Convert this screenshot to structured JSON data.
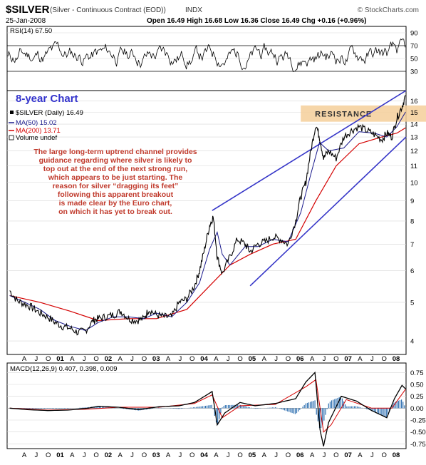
{
  "header": {
    "symbol": "$SILVER",
    "description": "(Silver - Continuous Contract (EOD))",
    "exchange": "INDX",
    "watermark": "© StockCharts.com",
    "date": "25-Jan-2008",
    "ohlc": "Open 16.49  High 16.68  Low 16.36  Close 16.49  Chg +0.16 (+0.96%)"
  },
  "annotations": {
    "chart_label": "8-year Chart",
    "resistance_label": "RESISTANCE",
    "commentary": [
      "The large long-term uptrend channel provides",
      "guidance regarding where silver is likely to",
      "top out at the end of the next strong run,",
      "which appears to be just starting. The",
      "reason for silver “dragging its feet”",
      "following this apparent breakout",
      "is made clear by the Euro chart,",
      "on which it has yet to break out."
    ]
  },
  "colors": {
    "price": "#000000",
    "ma50": "#1a1a8c",
    "ma200": "#d40000",
    "channel": "#3636c8",
    "resistance_band": "#f5cf9a",
    "commentary": "#c0392b",
    "macd_hist": "#2e6fb0",
    "grid": "#d8d8d8"
  },
  "chart_data": [
    {
      "type": "line",
      "name": "rsi-panel",
      "legend": "RSI(14) 67.50",
      "ylim": [
        0,
        100
      ],
      "y_ticks": [
        30,
        50,
        70,
        90
      ],
      "guide_levels": [
        30,
        70
      ],
      "last_value": 67.5
    },
    {
      "type": "line",
      "name": "price-panel",
      "scale": "log",
      "ylim": [
        3.7,
        17
      ],
      "y_ticks": [
        4,
        5,
        6,
        7,
        8,
        9,
        10,
        11,
        12,
        13,
        14,
        15,
        16
      ],
      "legend": [
        {
          "label": "$SILVER (Daily) 16.49",
          "color": "#000000"
        },
        {
          "label": "MA(50) 15.02",
          "color": "#1a1a8c"
        },
        {
          "label": "MA(200) 13.71",
          "color": "#d40000"
        },
        {
          "label": "Volume undef",
          "color": "#000000"
        }
      ],
      "x_ticks": [
        "A",
        "J",
        "O",
        "01",
        "A",
        "J",
        "O",
        "02",
        "A",
        "J",
        "O",
        "03",
        "A",
        "J",
        "O",
        "04",
        "A",
        "J",
        "O",
        "05",
        "A",
        "J",
        "O",
        "06",
        "A",
        "J",
        "O",
        "07",
        "A",
        "J",
        "O",
        "08"
      ],
      "x_range": [
        2000.2,
        2008.08
      ],
      "series": [
        {
          "name": "$SILVER",
          "x": [
            2000.25,
            2000.4,
            2000.55,
            2000.7,
            2000.85,
            2001.0,
            2001.15,
            2001.3,
            2001.45,
            2001.6,
            2001.75,
            2001.9,
            2002.0,
            2002.15,
            2002.3,
            2002.45,
            2002.6,
            2002.75,
            2002.9,
            2003.0,
            2003.15,
            2003.3,
            2003.45,
            2003.6,
            2003.75,
            2003.9,
            2004.0,
            2004.1,
            2004.2,
            2004.27,
            2004.35,
            2004.45,
            2004.6,
            2004.75,
            2004.9,
            2005.0,
            2005.15,
            2005.3,
            2005.45,
            2005.6,
            2005.75,
            2005.9,
            2006.0,
            2006.1,
            2006.2,
            2006.3,
            2006.37,
            2006.45,
            2006.55,
            2006.7,
            2006.85,
            2007.0,
            2007.15,
            2007.3,
            2007.45,
            2007.6,
            2007.7,
            2007.8,
            2007.9,
            2008.0,
            2008.07
          ],
          "y": [
            5.35,
            5.05,
            4.95,
            4.85,
            4.7,
            4.6,
            4.45,
            4.35,
            4.3,
            4.2,
            4.25,
            4.5,
            4.55,
            4.6,
            4.65,
            4.75,
            4.55,
            4.5,
            4.55,
            4.8,
            4.65,
            4.6,
            4.6,
            5.0,
            5.1,
            5.5,
            6.0,
            6.8,
            7.8,
            8.2,
            6.5,
            5.9,
            6.5,
            7.2,
            7.0,
            6.7,
            7.0,
            7.1,
            7.3,
            7.2,
            7.0,
            8.0,
            9.2,
            10.0,
            12.0,
            14.0,
            13.0,
            11.5,
            12.0,
            11.5,
            13.0,
            13.5,
            13.8,
            13.5,
            13.2,
            12.8,
            13.3,
            13.0,
            14.5,
            15.5,
            16.49
          ]
        },
        {
          "name": "MA(50)",
          "x": [
            2000.25,
            2000.55,
            2000.85,
            2001.15,
            2001.45,
            2001.75,
            2002.0,
            2002.3,
            2002.6,
            2002.9,
            2003.15,
            2003.45,
            2003.75,
            2004.0,
            2004.2,
            2004.35,
            2004.45,
            2004.6,
            2004.9,
            2005.15,
            2005.45,
            2005.75,
            2006.0,
            2006.2,
            2006.37,
            2006.55,
            2006.85,
            2007.15,
            2007.45,
            2007.7,
            2007.9,
            2008.07
          ],
          "y": [
            5.2,
            5.0,
            4.8,
            4.5,
            4.35,
            4.25,
            4.45,
            4.6,
            4.6,
            4.55,
            4.7,
            4.6,
            5.0,
            5.6,
            6.8,
            7.5,
            6.6,
            6.2,
            6.9,
            6.9,
            7.2,
            7.1,
            8.4,
            10.5,
            12.6,
            12.0,
            12.2,
            13.4,
            13.3,
            13.0,
            13.8,
            15.02
          ]
        },
        {
          "name": "MA(200)",
          "x": [
            2000.25,
            2000.85,
            2001.45,
            2002.0,
            2002.6,
            2003.15,
            2003.75,
            2004.2,
            2004.6,
            2005.0,
            2005.45,
            2005.9,
            2006.3,
            2006.7,
            2007.15,
            2007.6,
            2007.9,
            2008.07
          ],
          "y": [
            5.2,
            5.0,
            4.75,
            4.5,
            4.55,
            4.55,
            4.8,
            5.5,
            6.2,
            6.6,
            7.0,
            7.2,
            9.0,
            11.0,
            12.5,
            13.0,
            13.3,
            13.71
          ]
        }
      ],
      "channel_upper": {
        "x": [
          2004.25,
          2008.08
        ],
        "y": [
          8.5,
          17.0
        ]
      },
      "channel_lower": {
        "x": [
          2005.0,
          2008.08
        ],
        "y": [
          5.5,
          13.0
        ]
      },
      "resistance": {
        "ylim": [
          14.2,
          15.6
        ],
        "x_start": 2006.0
      }
    },
    {
      "type": "line",
      "name": "macd-panel",
      "legend": "MACD(12,26,9) 0.407, 0.398, 0.009",
      "ylim": [
        -0.85,
        0.95
      ],
      "y_ticks": [
        0.75,
        0.5,
        0.25,
        0.0,
        -0.25,
        -0.5,
        -0.75
      ],
      "y_tick_labels": [
        "0.75",
        "0.50",
        "0.25",
        "0.00",
        "-0.25",
        "-0.50",
        "-0.75"
      ],
      "x_ticks": [
        "A",
        "J",
        "O",
        "01",
        "A",
        "J",
        "O",
        "02",
        "A",
        "J",
        "O",
        "03",
        "A",
        "J",
        "O",
        "04",
        "A",
        "J",
        "O",
        "05",
        "A",
        "J",
        "O",
        "06",
        "A",
        "J",
        "O",
        "07",
        "A",
        "J",
        "O",
        "08"
      ],
      "series": [
        {
          "name": "MACD",
          "x": [
            2000.25,
            2000.6,
            2001.0,
            2001.4,
            2001.8,
            2002.0,
            2002.4,
            2002.8,
            2003.2,
            2003.6,
            2003.9,
            2004.1,
            2004.25,
            2004.35,
            2004.5,
            2004.8,
            2005.1,
            2005.5,
            2005.9,
            2006.1,
            2006.28,
            2006.38,
            2006.45,
            2006.55,
            2006.8,
            2007.1,
            2007.4,
            2007.7,
            2007.85,
            2008.0,
            2008.07
          ],
          "y": [
            0.0,
            -0.03,
            -0.05,
            -0.04,
            0.0,
            0.04,
            0.02,
            -0.03,
            0.03,
            0.05,
            0.12,
            0.25,
            0.35,
            -0.35,
            -0.1,
            0.12,
            0.05,
            0.1,
            0.2,
            0.55,
            0.75,
            -0.45,
            -0.8,
            -0.3,
            0.25,
            0.15,
            -0.05,
            -0.2,
            0.2,
            0.48,
            0.407
          ]
        },
        {
          "name": "Signal",
          "x": [
            2000.25,
            2001.0,
            2001.8,
            2002.4,
            2003.2,
            2003.9,
            2004.25,
            2004.45,
            2004.8,
            2005.5,
            2006.1,
            2006.3,
            2006.45,
            2006.6,
            2006.9,
            2007.4,
            2007.8,
            2008.07
          ],
          "y": [
            0.0,
            -0.04,
            -0.02,
            0.02,
            0.02,
            0.1,
            0.28,
            -0.2,
            0.05,
            0.08,
            0.45,
            0.6,
            -0.5,
            -0.35,
            0.18,
            0.0,
            0.0,
            0.398
          ]
        }
      ]
    }
  ]
}
